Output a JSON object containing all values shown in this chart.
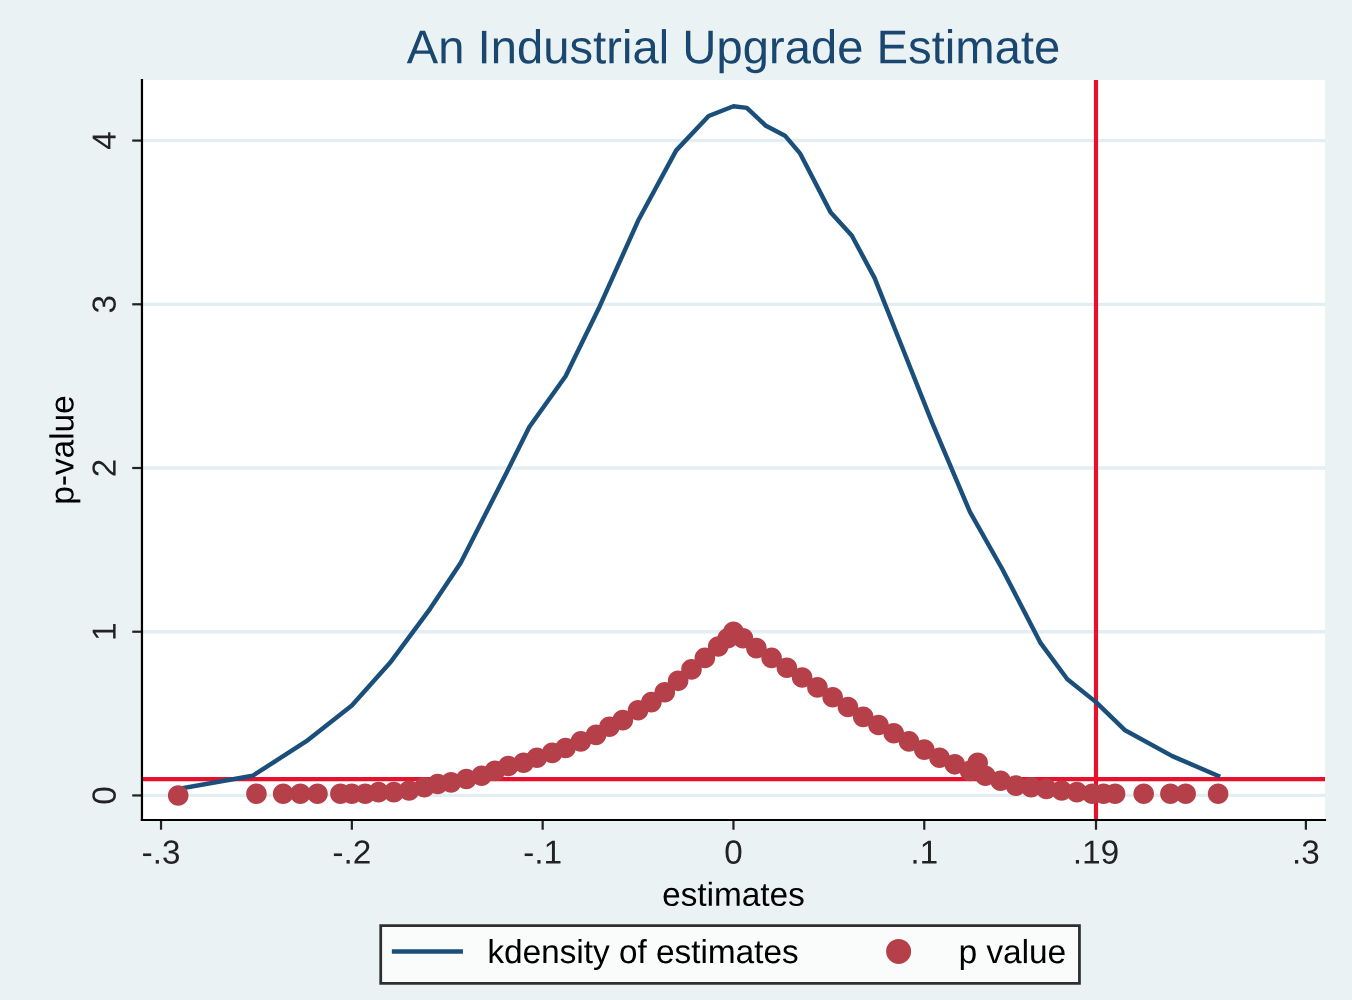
{
  "chart_data": {
    "type": "line",
    "title": "An Industrial Upgrade Estimate",
    "xlabel": "estimates",
    "ylabel": "p-value",
    "xlim": [
      -0.31,
      0.31
    ],
    "ylim": [
      -0.15,
      4.37
    ],
    "xticks": [
      {
        "value": -0.3,
        "label": "-.3"
      },
      {
        "value": -0.2,
        "label": "-.2"
      },
      {
        "value": -0.1,
        "label": "-.1"
      },
      0,
      {
        "value": 0.1,
        "label": ".1"
      },
      {
        "value": 0.19,
        "label": ".19"
      },
      {
        "value": 0.3,
        "label": ".3"
      }
    ],
    "yticks": [
      0,
      1,
      2,
      3,
      4
    ],
    "grid": "y",
    "legend": "bottom",
    "series": [
      {
        "name": "kdensity of estimates",
        "color": "#1a4f7c",
        "marker": "none",
        "line_style": "solid",
        "x": [
          -0.291,
          -0.252,
          -0.224,
          -0.2,
          -0.18,
          -0.159,
          -0.143,
          -0.119,
          -0.107,
          -0.088,
          -0.07,
          -0.05,
          -0.03,
          -0.013,
          0,
          0.007,
          0.017,
          0.027,
          0.035,
          0.051,
          0.062,
          0.074,
          0.088,
          0.104,
          0.124,
          0.141,
          0.161,
          0.175,
          0.19,
          0.205,
          0.23,
          0.254
        ],
        "values": [
          0.04,
          0.12,
          0.33,
          0.55,
          0.81,
          1.14,
          1.42,
          1.97,
          2.25,
          2.56,
          2.99,
          3.51,
          3.94,
          4.15,
          4.21,
          4.2,
          4.09,
          4.03,
          3.92,
          3.56,
          3.42,
          3.16,
          2.75,
          2.28,
          1.73,
          1.38,
          0.93,
          0.71,
          0.57,
          0.4,
          0.24,
          0.12
        ]
      },
      {
        "name": "p value",
        "type": "scatter",
        "color": "#b5404a",
        "marker": "circle",
        "x": [
          -0.291,
          -0.25,
          -0.236,
          -0.227,
          -0.218,
          -0.206,
          -0.2,
          -0.193,
          -0.186,
          -0.178,
          -0.17,
          -0.162,
          -0.155,
          -0.148,
          -0.14,
          -0.132,
          -0.125,
          -0.118,
          -0.11,
          -0.103,
          -0.095,
          -0.088,
          -0.08,
          -0.072,
          -0.065,
          -0.058,
          -0.05,
          -0.043,
          -0.036,
          -0.029,
          -0.022,
          -0.015,
          -0.008,
          -0.003,
          0,
          0.005,
          0.012,
          0.02,
          0.028,
          0.036,
          0.044,
          0.052,
          0.06,
          0.068,
          0.076,
          0.084,
          0.092,
          0.1,
          0.108,
          0.116,
          0.124,
          0.128,
          0.132,
          0.14,
          0.148,
          0.156,
          0.164,
          0.172,
          0.18,
          0.188,
          0.194,
          0.2,
          0.215,
          0.229,
          0.237,
          0.254
        ],
        "values": [
          0,
          0.01,
          0.01,
          0.01,
          0.01,
          0.01,
          0.01,
          0.01,
          0.02,
          0.02,
          0.03,
          0.05,
          0.07,
          0.08,
          0.1,
          0.12,
          0.15,
          0.18,
          0.2,
          0.23,
          0.26,
          0.29,
          0.33,
          0.37,
          0.42,
          0.46,
          0.52,
          0.57,
          0.63,
          0.7,
          0.77,
          0.84,
          0.91,
          0.96,
          1.0,
          0.96,
          0.9,
          0.84,
          0.78,
          0.72,
          0.66,
          0.6,
          0.54,
          0.48,
          0.43,
          0.38,
          0.33,
          0.28,
          0.23,
          0.19,
          0.15,
          0.2,
          0.12,
          0.09,
          0.06,
          0.05,
          0.04,
          0.03,
          0.02,
          0.01,
          0.01,
          0.01,
          0.01,
          0.01,
          0.01,
          0.01
        ]
      }
    ],
    "ref_lines": [
      {
        "axis": "x",
        "value": 0.19,
        "color": "#e8112d"
      },
      {
        "axis": "y",
        "value": 0.1,
        "color": "#e8112d"
      }
    ]
  }
}
